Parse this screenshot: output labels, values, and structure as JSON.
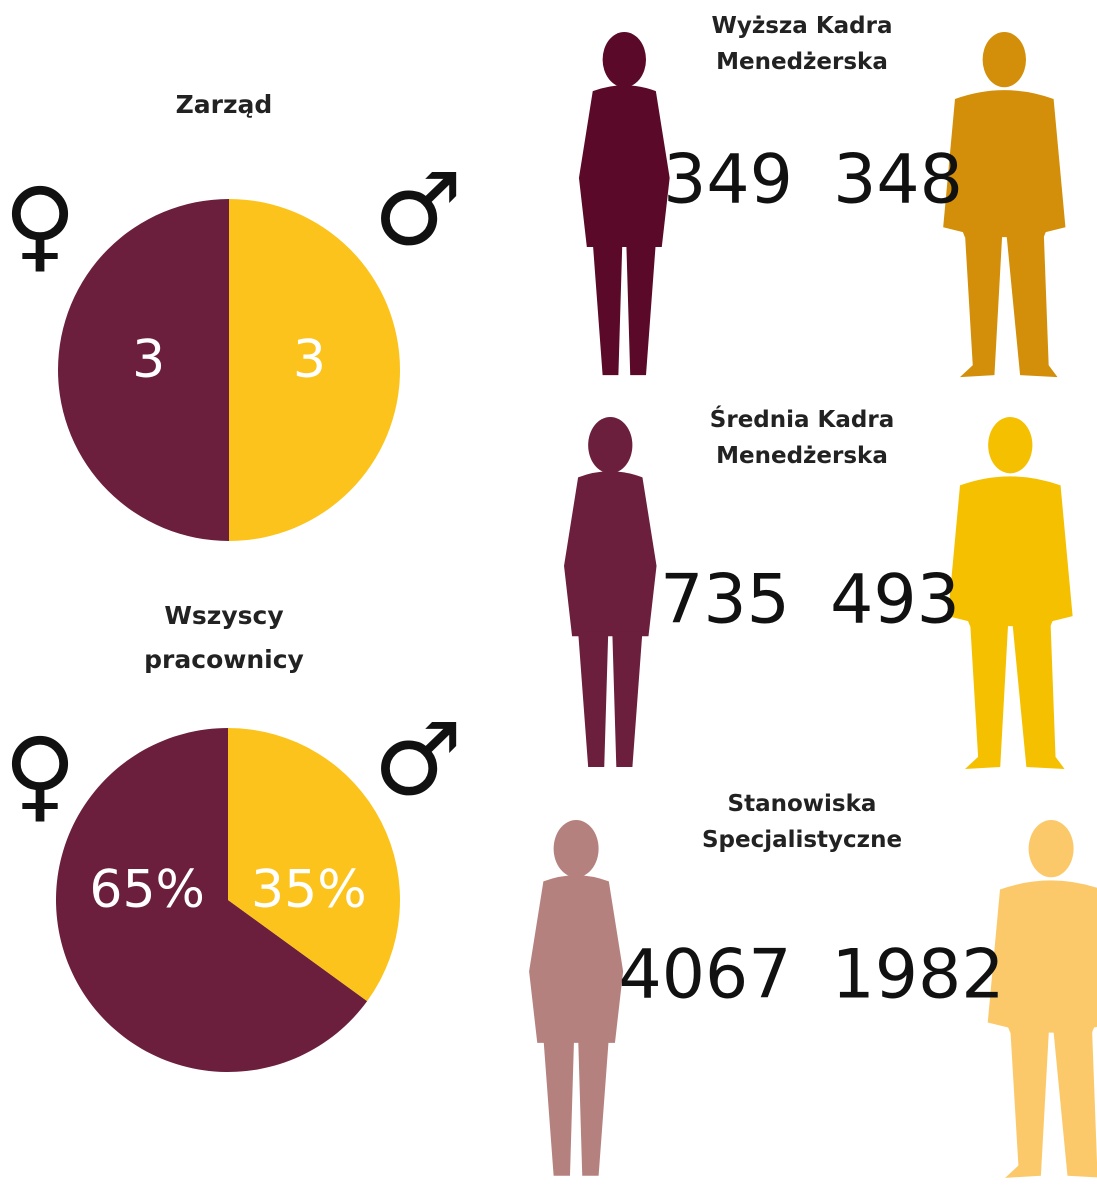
{
  "chart_data": [
    {
      "type": "pie",
      "title": "Zarząd",
      "categories": [
        "♀",
        "♂"
      ],
      "values": [
        3,
        3
      ],
      "colors": [
        "#6b1f3c",
        "#fbc31b"
      ]
    },
    {
      "type": "pie",
      "title": "Wszyscy pracownicy",
      "categories": [
        "♀",
        "♂"
      ],
      "values": [
        65,
        35
      ],
      "value_labels": [
        "65%",
        "35%"
      ],
      "colors": [
        "#6b1f3c",
        "#fbc31b"
      ]
    }
  ],
  "groups": [
    {
      "title": "Wyższa Kadra Menedżerska",
      "female": 349,
      "male": 348,
      "female_color": "#5a0a28",
      "male_color": "#d48f0a"
    },
    {
      "title": "Średnia Kadra Menedżerska",
      "female": 735,
      "male": 493,
      "female_color": "#6b1f3c",
      "male_color": "#f5c000"
    },
    {
      "title": "Stanowiska Specjalistyczne",
      "female": 4067,
      "male": 1982,
      "female_color": "#b5817f",
      "male_color": "#fbc96a"
    }
  ]
}
